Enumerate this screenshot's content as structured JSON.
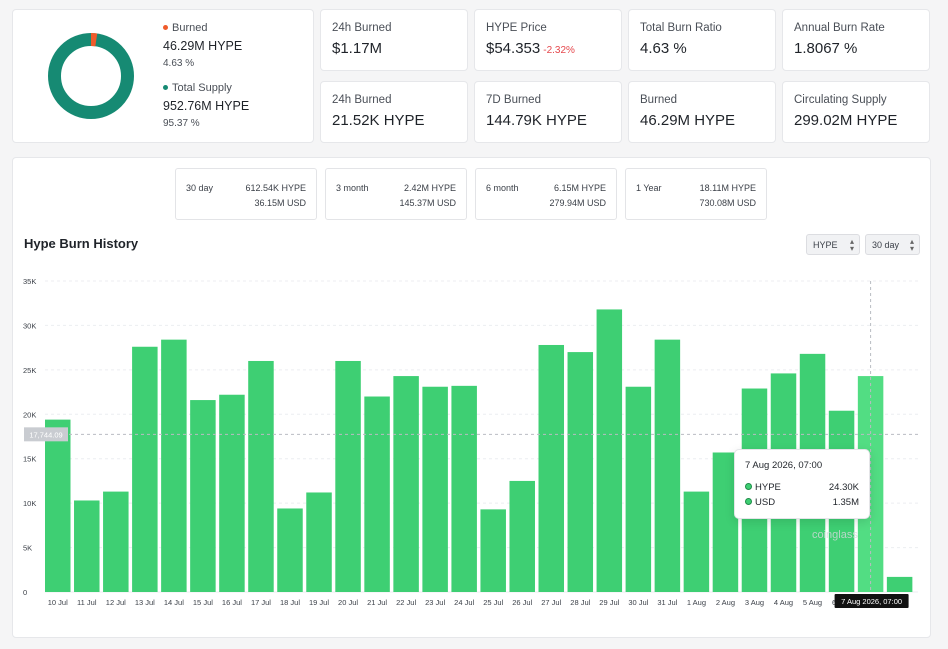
{
  "summary": {
    "burned_label": "Burned",
    "burned_value": "46.29M HYPE",
    "burned_pct": "4.63 %",
    "burned_color": "#ef5b2b",
    "supply_label": "Total Supply",
    "supply_value": "952.76M HYPE",
    "supply_pct": "95.37 %",
    "supply_color": "#168a73",
    "burned_fraction": 0.0463
  },
  "stats": [
    {
      "label": "24h Burned",
      "value": "$1.17M",
      "change": ""
    },
    {
      "label": "HYPE Price",
      "value": "$54.353",
      "change": "-2.32%"
    },
    {
      "label": "Total Burn Ratio",
      "value": "4.63 %",
      "change": ""
    },
    {
      "label": "Annual Burn Rate",
      "value": "1.8067 %",
      "change": ""
    },
    {
      "label": "24h Burned",
      "value": "21.52K HYPE",
      "change": ""
    },
    {
      "label": "7D Burned",
      "value": "144.79K HYPE",
      "change": ""
    },
    {
      "label": "Burned",
      "value": "46.29M HYPE",
      "change": ""
    },
    {
      "label": "Circulating Supply",
      "value": "299.02M HYPE",
      "change": ""
    }
  ],
  "periods": [
    {
      "name": "30 day",
      "hype": "612.54K HYPE",
      "usd": "36.15M USD"
    },
    {
      "name": "3 month",
      "hype": "2.42M HYPE",
      "usd": "145.37M USD"
    },
    {
      "name": "6 month",
      "hype": "6.15M HYPE",
      "usd": "279.94M USD"
    },
    {
      "name": "1 Year",
      "hype": "18.11M HYPE",
      "usd": "730.08M USD"
    }
  ],
  "chart": {
    "title": "Hype Burn History",
    "unit_select": "HYPE",
    "range_select": "30 day",
    "crosshair_value": "17,744.09",
    "crosshair_y": 17744.09,
    "crosshair_date": "7 Aug 2026, 07:00",
    "watermark": "coinglass",
    "tooltip": {
      "title": "7 Aug 2026, 07:00",
      "rows": [
        {
          "label": "HYPE",
          "value": "24.30K"
        },
        {
          "label": "USD",
          "value": "1.35M"
        }
      ]
    }
  },
  "chart_data": {
    "type": "bar",
    "title": "Hype Burn History",
    "ylim": [
      0,
      35000
    ],
    "yticks": [
      0,
      5000,
      10000,
      15000,
      20000,
      25000,
      30000,
      35000
    ],
    "ytick_labels": [
      "0",
      "5K",
      "10K",
      "15K",
      "20K",
      "25K",
      "30K",
      "35K"
    ],
    "bar_color": "#3ecf73",
    "highlight_color": "#52dd83",
    "highlight_index": 28,
    "categories": [
      "10 Jul",
      "11 Jul",
      "12 Jul",
      "13 Jul",
      "14 Jul",
      "15 Jul",
      "16 Jul",
      "17 Jul",
      "18 Jul",
      "19 Jul",
      "20 Jul",
      "21 Jul",
      "22 Jul",
      "23 Jul",
      "24 Jul",
      "25 Jul",
      "26 Jul",
      "27 Jul",
      "28 Jul",
      "29 Jul",
      "30 Jul",
      "31 Jul",
      "1 Aug",
      "2 Aug",
      "3 Aug",
      "4 Aug",
      "5 Aug",
      "6 Aug",
      "7 Aug",
      "8 Aug"
    ],
    "tick_labels": [
      "10 Jul",
      "11 Jul",
      "12 Jul",
      "13 Jul",
      "14 Jul",
      "15 Jul",
      "16 Jul",
      "17 Jul",
      "18 Jul",
      "19 Jul",
      "20 Jul",
      "21 Jul",
      "22 Jul",
      "23 Jul",
      "24 Jul",
      "25 Jul",
      "26 Jul",
      "27 Jul",
      "28 Jul",
      "29 Jul",
      "30 Jul",
      "31 Jul",
      "1 Aug",
      "2 Aug",
      "3 Aug",
      "4 Aug",
      "5 Aug",
      "6 Aug",
      "",
      "g"
    ],
    "values": [
      19400,
      10300,
      11300,
      27600,
      28400,
      21600,
      22200,
      26000,
      9400,
      11200,
      26000,
      22000,
      24300,
      23100,
      23200,
      9300,
      12500,
      27800,
      27000,
      31800,
      23100,
      28400,
      11300,
      15700,
      22900,
      24600,
      26800,
      20400,
      24300,
      1700
    ],
    "grid": true,
    "legend": "none"
  }
}
